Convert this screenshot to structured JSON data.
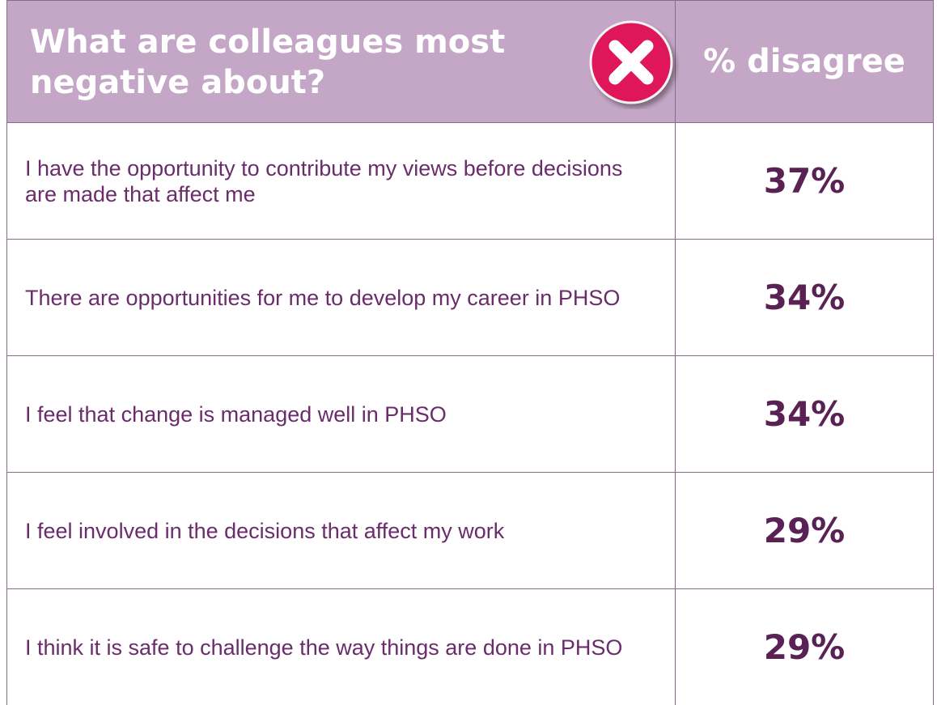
{
  "header": {
    "title": "What are colleagues most negative about?",
    "value_label": "% disagree"
  },
  "table": {
    "rows": [
      [
        "I have the opportunity to contribute my views before decisions are made that affect me",
        "37%"
      ],
      [
        "There are opportunities for me to develop my career in PHSO",
        "34%"
      ],
      [
        "I feel that change is managed well in PHSO",
        "34%"
      ],
      [
        "I feel involved in the decisions that affect my work",
        "29%"
      ],
      [
        "I think it is safe to challenge the way things are done in PHSO",
        "29%"
      ]
    ]
  }
}
